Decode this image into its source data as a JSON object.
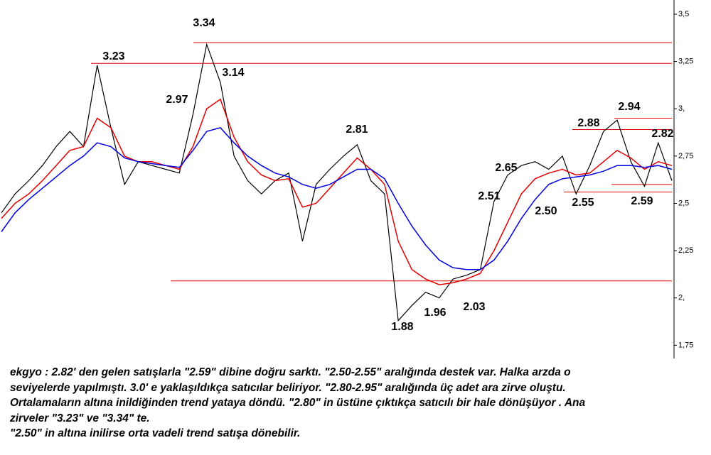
{
  "chart_data": {
    "type": "line",
    "categories": [
      null,
      null,
      null,
      null,
      null,
      null,
      null,
      null,
      null,
      null,
      null,
      null,
      null,
      null,
      null,
      null,
      null,
      null,
      null,
      null,
      null,
      null,
      null,
      null,
      null,
      null,
      null,
      null,
      null,
      null,
      null,
      null,
      null,
      null,
      null,
      null,
      null,
      null,
      null,
      null,
      null,
      null,
      null,
      null,
      null,
      null,
      null,
      null,
      null,
      null
    ],
    "series": [
      {
        "color": "#000000",
        "values": [
          2.45,
          2.55,
          2.62,
          2.7,
          2.8,
          2.88,
          2.8,
          3.23,
          2.9,
          2.6,
          2.72,
          2.7,
          2.68,
          2.66,
          2.97,
          3.34,
          3.14,
          2.75,
          2.62,
          2.55,
          2.62,
          2.66,
          2.3,
          2.6,
          2.68,
          2.75,
          2.81,
          2.62,
          2.55,
          1.88,
          1.96,
          2.03,
          2.0,
          2.1,
          2.12,
          2.15,
          2.51,
          2.65,
          2.7,
          2.72,
          2.68,
          2.75,
          2.55,
          2.7,
          2.88,
          2.94,
          2.72,
          2.59,
          2.82,
          2.62
        ]
      },
      {
        "color": "#e00000",
        "values": [
          2.42,
          2.5,
          2.55,
          2.62,
          2.7,
          2.78,
          2.8,
          2.95,
          2.9,
          2.75,
          2.72,
          2.72,
          2.7,
          2.68,
          2.8,
          3.0,
          3.05,
          2.85,
          2.72,
          2.65,
          2.62,
          2.63,
          2.48,
          2.5,
          2.58,
          2.66,
          2.74,
          2.68,
          2.6,
          2.3,
          2.15,
          2.1,
          2.07,
          2.08,
          2.1,
          2.13,
          2.25,
          2.4,
          2.55,
          2.63,
          2.66,
          2.68,
          2.65,
          2.66,
          2.72,
          2.78,
          2.74,
          2.68,
          2.72,
          2.7
        ]
      },
      {
        "color": "#0000e0",
        "values": [
          2.35,
          2.45,
          2.52,
          2.58,
          2.64,
          2.7,
          2.75,
          2.82,
          2.8,
          2.74,
          2.72,
          2.71,
          2.7,
          2.69,
          2.78,
          2.88,
          2.9,
          2.82,
          2.75,
          2.7,
          2.66,
          2.64,
          2.6,
          2.58,
          2.6,
          2.64,
          2.68,
          2.68,
          2.63,
          2.5,
          2.38,
          2.28,
          2.2,
          2.16,
          2.15,
          2.15,
          2.2,
          2.3,
          2.42,
          2.52,
          2.6,
          2.63,
          2.64,
          2.65,
          2.67,
          2.7,
          2.7,
          2.69,
          2.7,
          2.68
        ]
      }
    ],
    "levels": {
      "color": "#e00000",
      "values": [
        3.35,
        3.24,
        2.95,
        2.89,
        2.6,
        2.56,
        2.09
      ]
    },
    "annotations": [
      "3.23",
      "3.34",
      "3.14",
      "2.97",
      "2.81",
      "2.65",
      "2.51",
      "2.50",
      "2.55",
      "2.88",
      "2.94",
      "2.82",
      "2.59",
      "1.88",
      "1.96",
      "2.03"
    ],
    "ylim": [
      1.68,
      3.575
    ],
    "yticks": [
      {
        "value": 1.75,
        "label": "1,75"
      },
      {
        "value": 2,
        "label": "2,"
      },
      {
        "value": 2.25,
        "label": "2,25"
      },
      {
        "value": 2.5,
        "label": "2,5"
      },
      {
        "value": 2.75,
        "label": "2,75"
      },
      {
        "value": 3,
        "label": "3,"
      },
      {
        "value": 3.25,
        "label": "3,25"
      },
      {
        "value": 3.5,
        "label": "3,5"
      }
    ]
  },
  "notes": [
    "ekgyo : 2.82' den gelen satışlarla \"2.59\" dibine doğru sarktı. \"2.50-2.55\" aralığında destek var. Halka arzda o",
    "seviyelerde yapılmıştı. 3.0' e yaklaşıldıkça satıcılar beliriyor. \"2.80-2.95\" aralığında üç adet ara zirve oluştu.",
    "Ortalamaların altına inildiğinden trend yataya döndü. \"2.80\" in üstüne çıktıkça satıcılı bir hale dönüşüyor . Ana",
    "zirveler \"3.23\" ve \"3.34\" te.",
    "\"2.50\" in altına inilirse orta vadeli trend satışa dönebilir."
  ]
}
